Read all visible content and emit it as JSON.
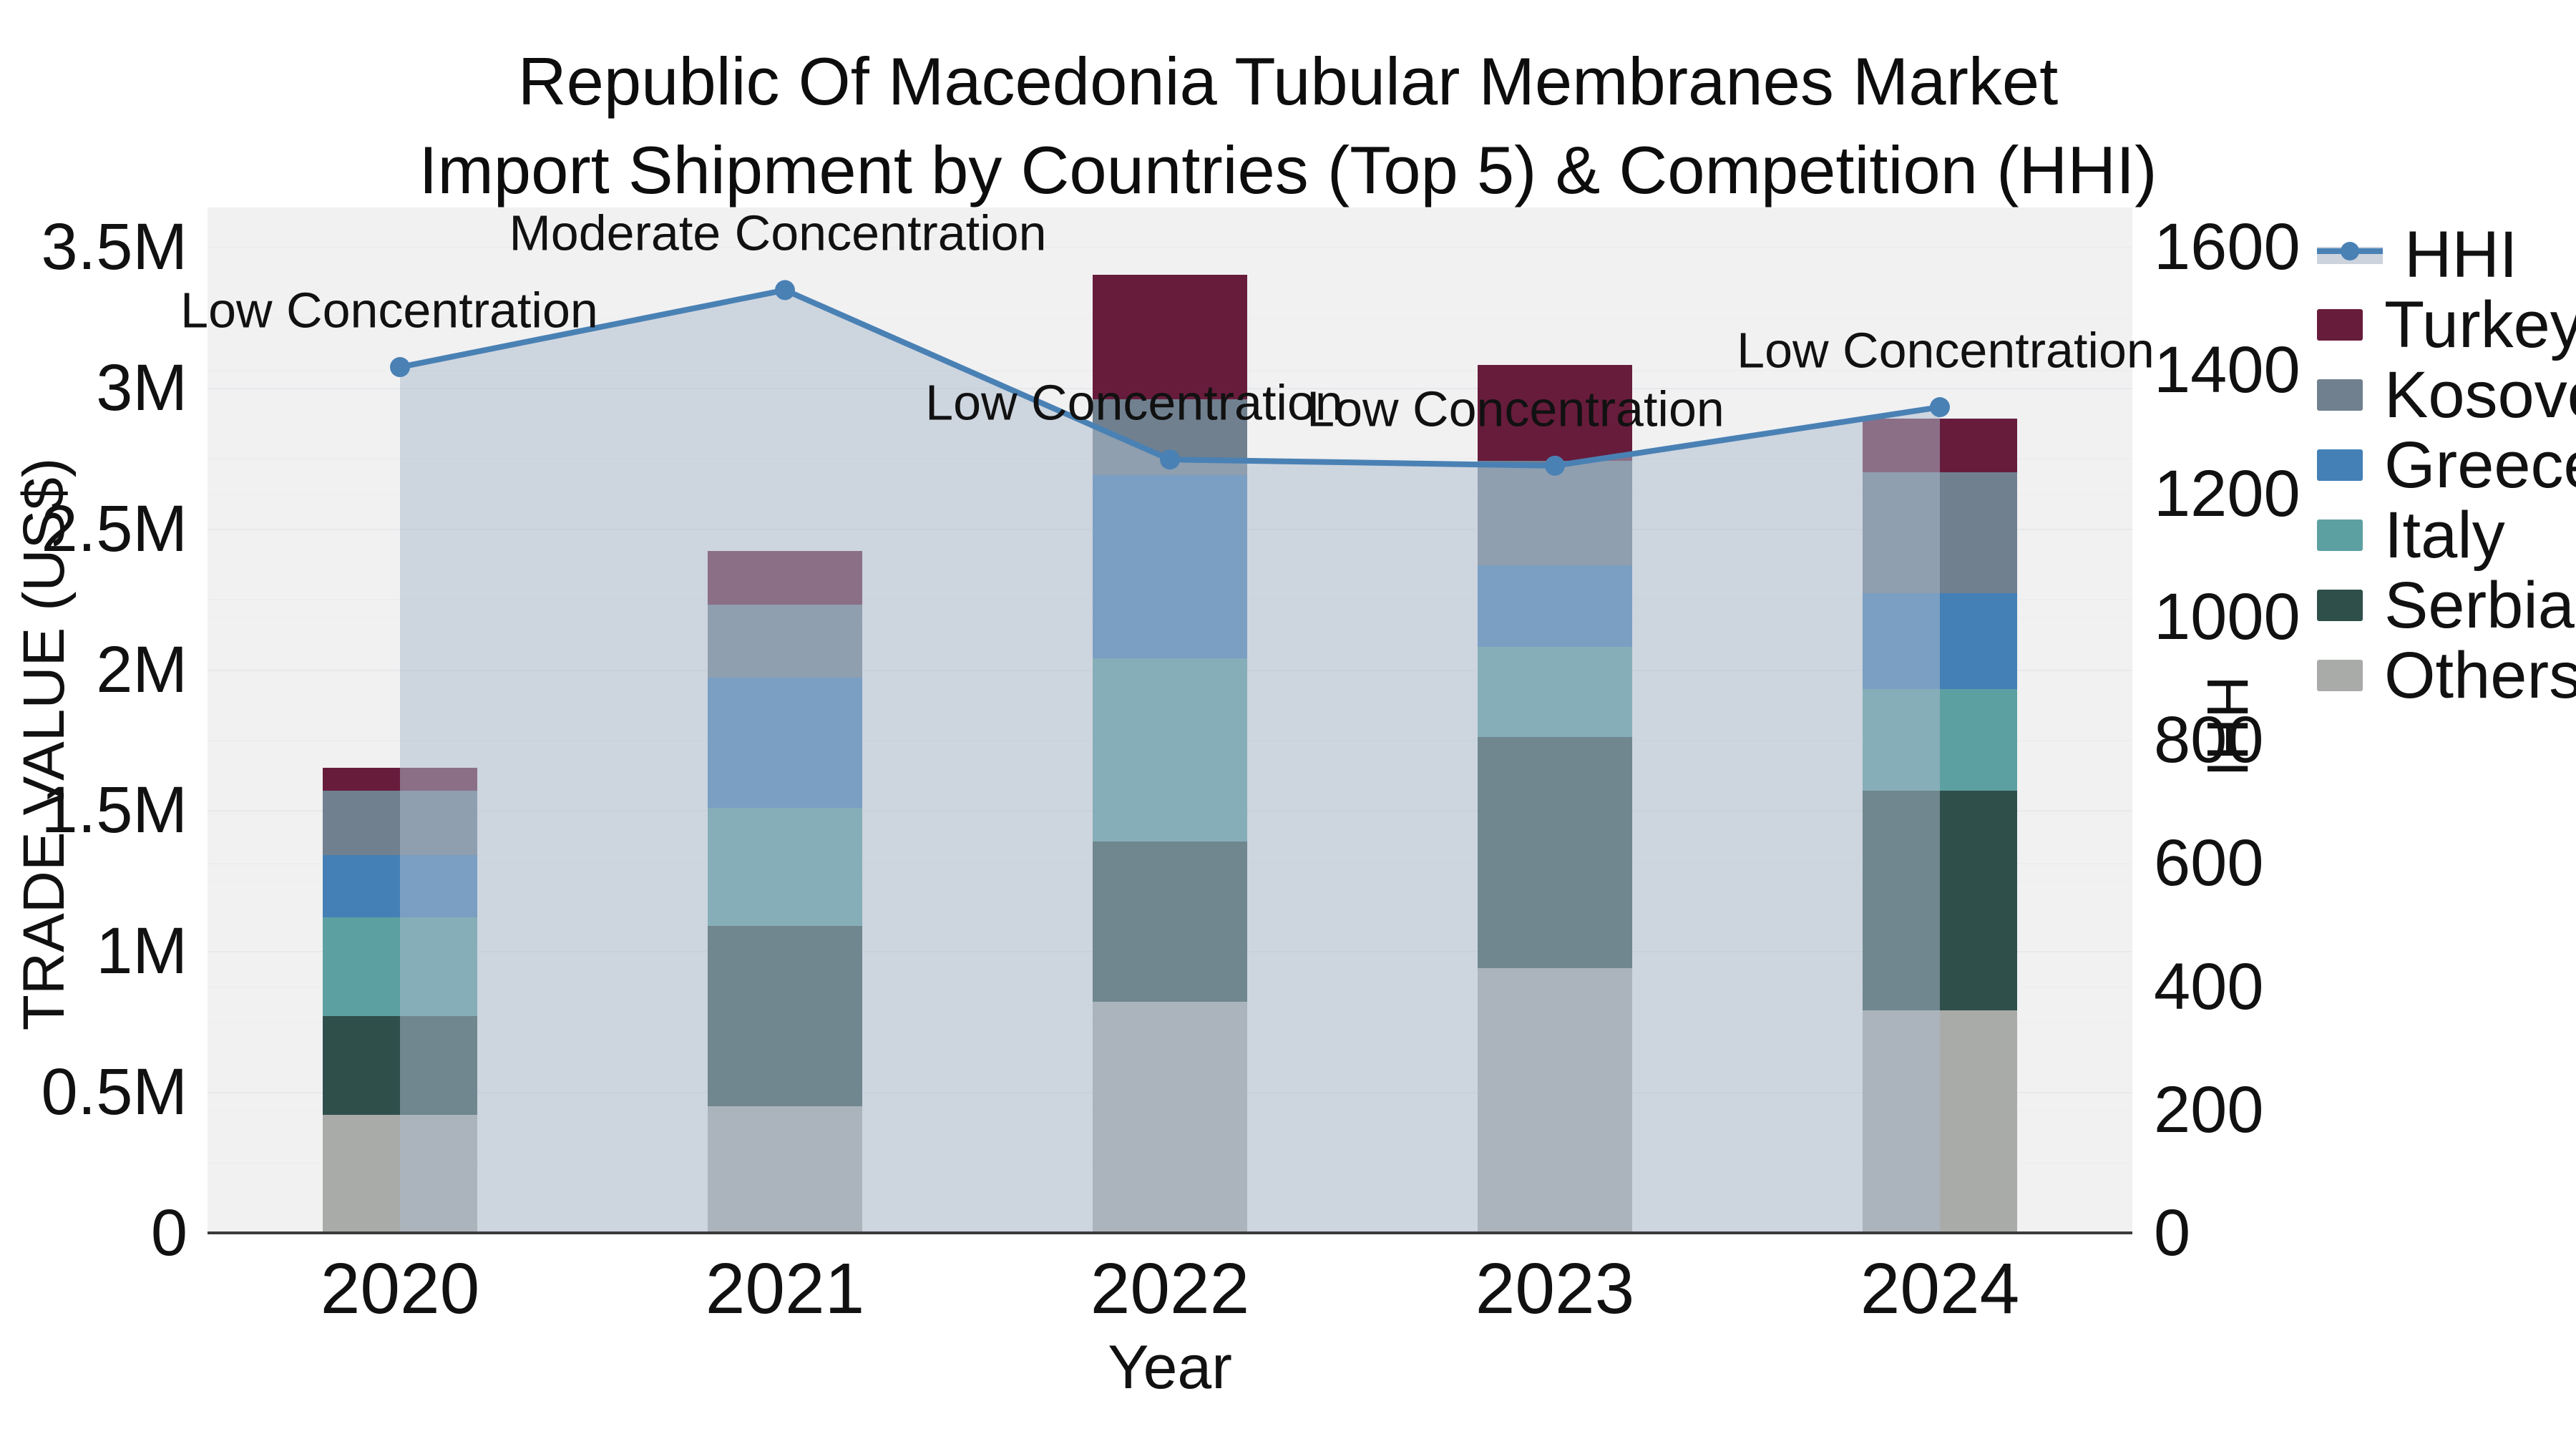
{
  "title": {
    "line1": "Republic Of Macedonia Tubular Membranes Market",
    "line2": "Import Shipment by Countries (Top 5) & Competition (HHI)"
  },
  "axes": {
    "y_left": {
      "title": "TRADE VALUE (US$)",
      "ticks": [
        "0",
        "0.5M",
        "1M",
        "1.5M",
        "2M",
        "2.5M",
        "3M",
        "3.5M"
      ],
      "tick_values": [
        0,
        500000,
        1000000,
        1500000,
        2000000,
        2500000,
        3000000,
        3500000
      ],
      "max": 3640000
    },
    "y_right": {
      "title": "HHI",
      "ticks": [
        "0",
        "200",
        "400",
        "600",
        "800",
        "1000",
        "1200",
        "1400",
        "1600"
      ],
      "tick_values": [
        0,
        200,
        400,
        600,
        800,
        1000,
        1200,
        1400,
        1600
      ],
      "max": 1664
    },
    "x": {
      "title": "Year",
      "categories": [
        "2020",
        "2021",
        "2022",
        "2023",
        "2024"
      ]
    }
  },
  "legend": {
    "items": [
      {
        "label": "HHI",
        "type": "line",
        "color": "#4a81b4"
      },
      {
        "label": "Turkey",
        "type": "box",
        "color": "#681c3c"
      },
      {
        "label": "Kosovo",
        "type": "box",
        "color": "#70808f"
      },
      {
        "label": "Greece",
        "type": "box",
        "color": "#4480b6"
      },
      {
        "label": "Italy",
        "type": "box",
        "color": "#5da0a2"
      },
      {
        "label": "Serbia",
        "type": "box",
        "color": "#2f4f4b"
      },
      {
        "label": "Others",
        "type": "box",
        "color": "#a9aba9"
      }
    ]
  },
  "colors": {
    "plot_background": "#f1f1f2",
    "gridline": "#e7e9eb",
    "axis_line": "#3b3b3b",
    "hhi_line": "#4a81b4",
    "hhi_area_fill": "rgba(173,187,206,0.52)",
    "text": "#111111"
  },
  "chart_data": {
    "type": "bar",
    "stacked": true,
    "title": "Republic Of Macedonia Tubular Membranes Market — Import Shipment by Countries (Top 5) & Competition (HHI)",
    "xlabel": "Year",
    "ylabel_left": "TRADE VALUE (US$)",
    "ylabel_right": "HHI",
    "ylim_left": [
      0,
      3500000
    ],
    "ylim_right": [
      0,
      1600
    ],
    "grid": true,
    "legend_position": "right",
    "categories": [
      "2020",
      "2021",
      "2022",
      "2023",
      "2024"
    ],
    "series": [
      {
        "name": "Others",
        "color": "#a9aba9",
        "values": [
          420000,
          450000,
          820000,
          940000,
          790000
        ]
      },
      {
        "name": "Serbia",
        "color": "#2f4f4b",
        "values": [
          350000,
          640000,
          570000,
          820000,
          780000
        ]
      },
      {
        "name": "Italy",
        "color": "#5da0a2",
        "values": [
          350000,
          420000,
          650000,
          320000,
          360000
        ]
      },
      {
        "name": "Greece",
        "color": "#4480b6",
        "values": [
          220000,
          460000,
          650000,
          290000,
          340000
        ]
      },
      {
        "name": "Kosovo",
        "color": "#70808f",
        "values": [
          230000,
          260000,
          270000,
          370000,
          430000
        ]
      },
      {
        "name": "Turkey",
        "color": "#681c3c",
        "values": [
          80000,
          190000,
          440000,
          340000,
          190000
        ]
      }
    ],
    "totals": [
      1650000,
      2420000,
      3400000,
      3080000,
      2890000
    ],
    "hhi_line": {
      "name": "HHI",
      "axis": "right",
      "color": "#4a81b4",
      "style": "line+markers+area",
      "values": [
        1405,
        1530,
        1255,
        1245,
        1340
      ],
      "annotations": [
        "Low Concentration",
        "Moderate Concentration",
        "Low Concentration",
        "Low Concentration",
        "Low Concentration"
      ]
    }
  }
}
